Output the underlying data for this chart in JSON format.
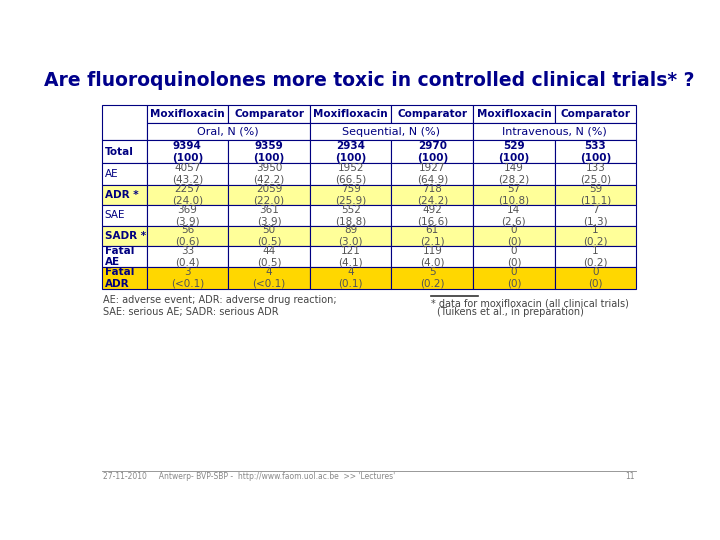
{
  "title": "Are fluoroquinolones more toxic in controlled clinical trials* ?",
  "title_color": "#00008B",
  "title_fontsize": 13.5,
  "group_names": [
    "Oral, N (%)",
    "Sequential, N (%)",
    "Intravenous, N (%)"
  ],
  "row_labels": [
    "Total",
    "AE",
    "ADR *",
    "SAE",
    "SADR *",
    "Fatal\nAE",
    "Fatal\nADR"
  ],
  "data": [
    [
      "9394\n(100)",
      "9359\n(100)",
      "2934\n(100)",
      "2970\n(100)",
      "529\n(100)",
      "533\n(100)"
    ],
    [
      "4057\n(43.2)",
      "3950\n(42.2)",
      "1952\n(66.5)",
      "1927\n(64.9)",
      "149\n(28.2)",
      "133\n(25.0)"
    ],
    [
      "2257\n(24.0)",
      "2059\n(22.0)",
      "759\n(25.9)",
      "718\n(24.2)",
      "57\n(10.8)",
      "59\n(11.1)"
    ],
    [
      "369\n(3.9)",
      "361\n(3.9)",
      "552\n(18.8)",
      "492\n(16.6)",
      "14\n(2.6)",
      "7\n(1.3)"
    ],
    [
      "56\n(0.6)",
      "50\n(0.5)",
      "89\n(3.0)",
      "61\n(2.1)",
      "0\n(0)",
      "1\n(0.2)"
    ],
    [
      "33\n(0.4)",
      "44\n(0.5)",
      "121\n(4.1)",
      "119\n(4.0)",
      "0\n(0)",
      "1\n(0.2)"
    ],
    [
      "3\n(<0.1)",
      "4\n(<0.1)",
      "4\n(0.1)",
      "5\n(0.2)",
      "0\n(0)",
      "0\n(0)"
    ]
  ],
  "row_label_bold": [
    true,
    false,
    true,
    false,
    true,
    true,
    true
  ],
  "row_data_bold": [
    true,
    false,
    false,
    false,
    false,
    false,
    false
  ],
  "row_bg_colors": [
    "#FFFFFF",
    "#FFFFFF",
    "#FFFF99",
    "#FFFFFF",
    "#FFFF99",
    "#FFFFFF",
    "#FFD700"
  ],
  "border_color": "#000080",
  "text_color_header": "#000080",
  "text_color_normal": "#555555",
  "footer_left": "AE: adverse event; ADR: adverse drug reaction;\nSAE: serious AE; SADR: serious ADR",
  "footer_right1": "* data for moxifloxacin (all clinical trials)",
  "footer_right2": "(Tuikens et al., in preparation)",
  "bottom_text": "27-11-2010     Antwerp- BVP-SBP -  http://www.faom.uol.ac.be  >> 'Lectures'",
  "bottom_page": "11"
}
